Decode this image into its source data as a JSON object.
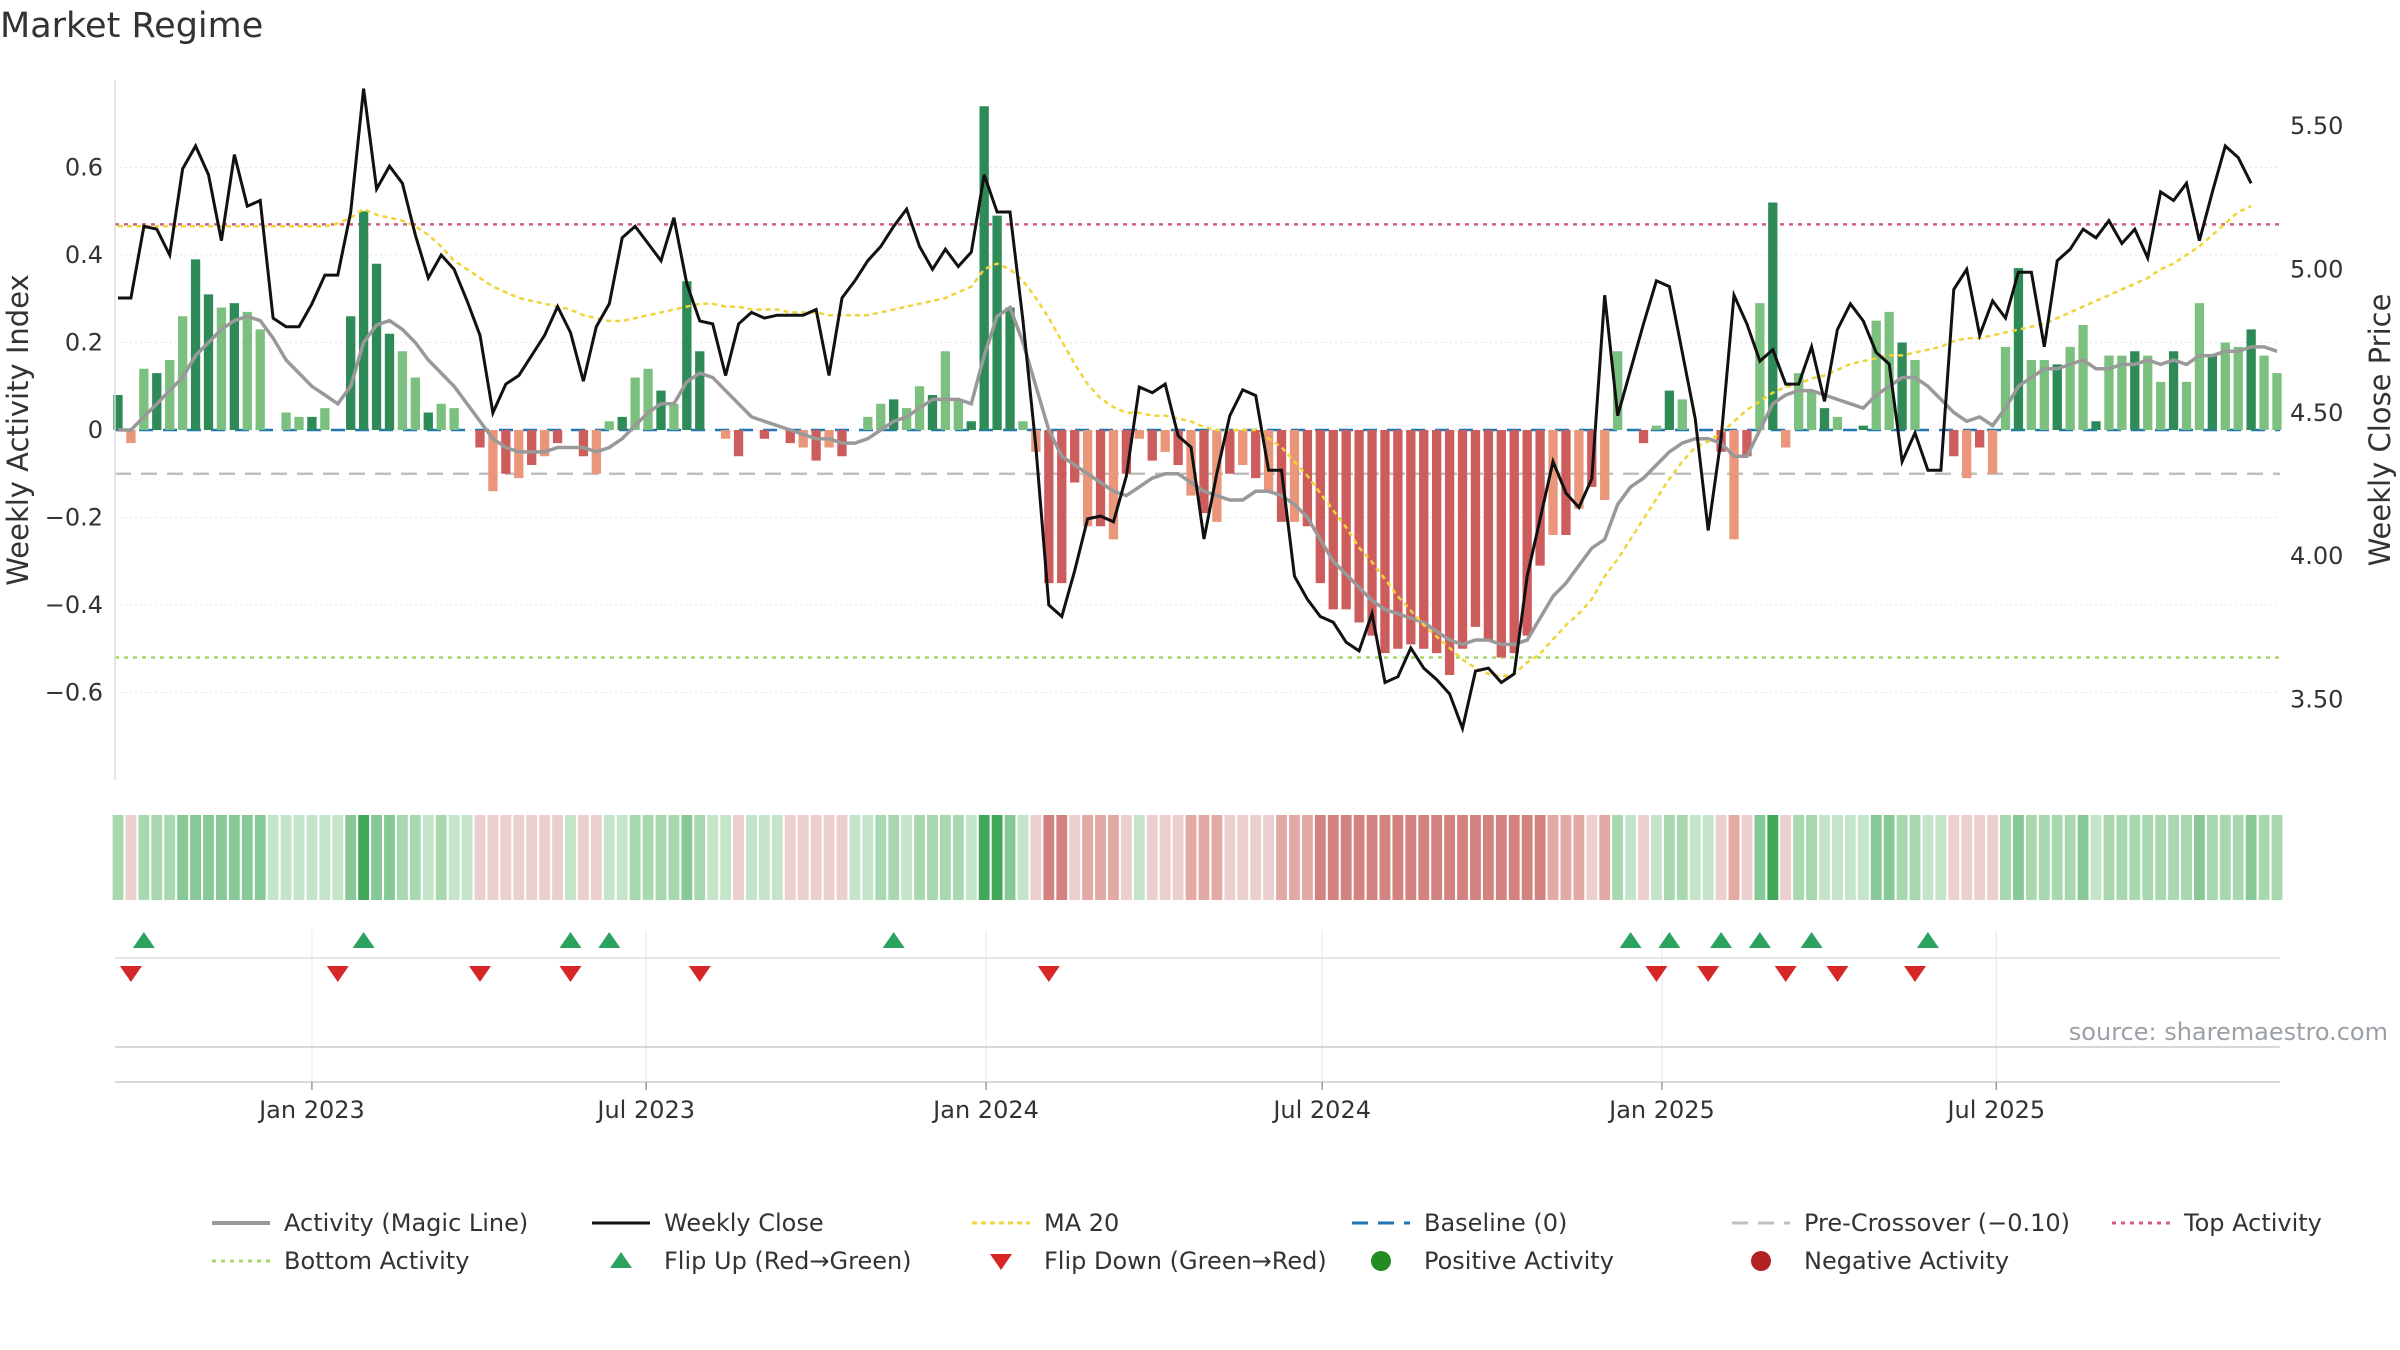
{
  "title": "Market Regime",
  "source_text": "source: sharemaestro.com",
  "colors": {
    "pos_strong": "#2e8b57",
    "pos_light": "#7cc07f",
    "neg_strong": "#cd5c5c",
    "neg_light": "#e9967a",
    "magic_line": "#999999",
    "close_line": "#111111",
    "ma20": "#f0d43a",
    "baseline": "#1f77b4",
    "precross": "#c0c0c0",
    "top": "#d45b83",
    "bottom": "#a8d86a",
    "flip_up": "#2ca25f",
    "flip_down": "#d62728",
    "pos_dot": "#228b22",
    "neg_dot": "#b22222"
  },
  "chart_data": {
    "type": "bar",
    "title": "Market Regime",
    "ylabel": "Weekly Activity Index",
    "y2label": "Weekly Close Price",
    "ylim": [
      -0.8,
      0.8
    ],
    "y2lim": [
      3.22,
      5.66
    ],
    "yticks": [
      0.6,
      0.4,
      0.2,
      0,
      -0.2,
      -0.4,
      -0.6
    ],
    "ytick_labels": [
      "0.6",
      "0.4",
      "0.2",
      "0",
      "−0.2",
      "−0.4",
      "−0.6"
    ],
    "y2ticks": [
      5.5,
      5.0,
      4.5,
      4.0,
      3.5
    ],
    "y2tick_labels": [
      "5.50",
      "5.00",
      "4.50",
      "4.00",
      "3.50"
    ],
    "start": "2022-09-18",
    "xticks": [
      {
        "date": "2023-01-01",
        "label": "Jan 2023"
      },
      {
        "date": "2023-07-01",
        "label": "Jul 2023"
      },
      {
        "date": "2024-01-01",
        "label": "Jan 2024"
      },
      {
        "date": "2024-07-01",
        "label": "Jul 2024"
      },
      {
        "date": "2025-01-01",
        "label": "Jan 2025"
      },
      {
        "date": "2025-07-01",
        "label": "Jul 2025"
      }
    ],
    "reference_lines": {
      "baseline": 0,
      "pre_crossover": -0.1,
      "top_activity": 0.47,
      "bottom_activity": -0.52
    },
    "activity": [
      0.08,
      -0.03,
      0.14,
      0.13,
      0.16,
      0.26,
      0.39,
      0.31,
      0.28,
      0.29,
      0.27,
      0.23,
      0.0,
      0.04,
      0.03,
      0.03,
      0.05,
      0.0,
      0.26,
      0.5,
      0.38,
      0.22,
      0.18,
      0.12,
      0.04,
      0.06,
      0.05,
      0.0,
      -0.04,
      -0.14,
      -0.1,
      -0.11,
      -0.08,
      -0.06,
      -0.03,
      0.0,
      -0.06,
      -0.1,
      0.02,
      0.03,
      0.12,
      0.14,
      0.09,
      0.06,
      0.34,
      0.18,
      0.0,
      -0.02,
      -0.06,
      0.0,
      -0.02,
      0.0,
      -0.03,
      -0.04,
      -0.07,
      -0.04,
      -0.06,
      0.0,
      0.03,
      0.06,
      0.07,
      0.05,
      0.1,
      0.08,
      0.18,
      0.07,
      0.02,
      0.74,
      0.49,
      0.28,
      0.02,
      -0.05,
      -0.35,
      -0.35,
      -0.12,
      -0.22,
      -0.22,
      -0.25,
      -0.1,
      -0.02,
      -0.07,
      -0.05,
      -0.08,
      -0.15,
      -0.19,
      -0.21,
      -0.1,
      -0.08,
      -0.11,
      -0.14,
      -0.21,
      -0.21,
      -0.22,
      -0.35,
      -0.41,
      -0.41,
      -0.44,
      -0.47,
      -0.51,
      -0.5,
      -0.49,
      -0.5,
      -0.51,
      -0.56,
      -0.5,
      -0.45,
      -0.48,
      -0.52,
      -0.51,
      -0.47,
      -0.31,
      -0.24,
      -0.24,
      -0.18,
      -0.13,
      -0.16,
      0.18,
      0.0,
      -0.03,
      0.01,
      0.09,
      0.07,
      0.0,
      0.0,
      -0.05,
      -0.25,
      -0.06,
      0.29,
      0.52,
      -0.04,
      0.13,
      0.09,
      0.05,
      0.03,
      0.0,
      0.01,
      0.25,
      0.27,
      0.2,
      0.16,
      0.0,
      0.0,
      -0.06,
      -0.11,
      -0.04,
      -0.1,
      0.19,
      0.37,
      0.16,
      0.16,
      0.15,
      0.19,
      0.24,
      0.02,
      0.17,
      0.17,
      0.18,
      0.17,
      0.11,
      0.18,
      0.11,
      0.29,
      0.17,
      0.2,
      0.19,
      0.23,
      0.17,
      0.13
    ],
    "magic_line": [
      0.0,
      0.0,
      0.03,
      0.06,
      0.09,
      0.12,
      0.17,
      0.2,
      0.23,
      0.25,
      0.26,
      0.25,
      0.21,
      0.16,
      0.13,
      0.1,
      0.08,
      0.06,
      0.1,
      0.2,
      0.24,
      0.25,
      0.23,
      0.2,
      0.16,
      0.13,
      0.1,
      0.06,
      0.02,
      -0.02,
      -0.04,
      -0.05,
      -0.05,
      -0.05,
      -0.04,
      -0.04,
      -0.04,
      -0.05,
      -0.04,
      -0.02,
      0.01,
      0.04,
      0.06,
      0.06,
      0.11,
      0.13,
      0.12,
      0.09,
      0.06,
      0.03,
      0.02,
      0.01,
      0.0,
      -0.01,
      -0.02,
      -0.02,
      -0.03,
      -0.03,
      -0.02,
      0.0,
      0.02,
      0.03,
      0.05,
      0.07,
      0.07,
      0.07,
      0.06,
      0.17,
      0.26,
      0.28,
      0.2,
      0.1,
      0.0,
      -0.06,
      -0.08,
      -0.1,
      -0.12,
      -0.14,
      -0.15,
      -0.13,
      -0.11,
      -0.1,
      -0.1,
      -0.12,
      -0.14,
      -0.15,
      -0.16,
      -0.16,
      -0.14,
      -0.14,
      -0.15,
      -0.17,
      -0.2,
      -0.25,
      -0.3,
      -0.33,
      -0.36,
      -0.39,
      -0.41,
      -0.42,
      -0.43,
      -0.44,
      -0.46,
      -0.48,
      -0.49,
      -0.48,
      -0.48,
      -0.49,
      -0.49,
      -0.48,
      -0.43,
      -0.38,
      -0.35,
      -0.31,
      -0.27,
      -0.25,
      -0.17,
      -0.13,
      -0.11,
      -0.08,
      -0.05,
      -0.03,
      -0.02,
      -0.02,
      -0.03,
      -0.06,
      -0.06,
      0.0,
      0.06,
      0.08,
      0.09,
      0.09,
      0.08,
      0.07,
      0.06,
      0.05,
      0.08,
      0.1,
      0.12,
      0.12,
      0.1,
      0.07,
      0.04,
      0.02,
      0.03,
      0.01,
      0.05,
      0.1,
      0.12,
      0.14,
      0.14,
      0.15,
      0.16,
      0.14,
      0.14,
      0.15,
      0.15,
      0.16,
      0.15,
      0.16,
      0.15,
      0.17,
      0.17,
      0.18,
      0.18,
      0.19,
      0.19,
      0.18
    ],
    "weekly_close": [
      4.9,
      4.9,
      5.15,
      5.14,
      5.05,
      5.35,
      5.43,
      5.33,
      5.1,
      5.4,
      5.22,
      5.24,
      4.83,
      4.8,
      4.8,
      4.88,
      4.98,
      4.98,
      5.2,
      5.63,
      5.28,
      5.36,
      5.3,
      5.12,
      4.97,
      5.05,
      5.0,
      4.89,
      4.77,
      4.5,
      4.6,
      4.63,
      4.7,
      4.77,
      4.87,
      4.78,
      4.61,
      4.8,
      4.88,
      5.11,
      5.15,
      5.09,
      5.03,
      5.18,
      4.95,
      4.82,
      4.81,
      4.63,
      4.81,
      4.85,
      4.83,
      4.84,
      4.84,
      4.84,
      4.86,
      4.63,
      4.9,
      4.96,
      5.03,
      5.08,
      5.15,
      5.21,
      5.08,
      5.0,
      5.07,
      5.01,
      5.06,
      5.33,
      5.2,
      5.2,
      4.82,
      4.38,
      3.83,
      3.79,
      3.95,
      4.13,
      4.14,
      4.12,
      4.28,
      4.59,
      4.57,
      4.6,
      4.42,
      4.38,
      4.06,
      4.29,
      4.49,
      4.58,
      4.56,
      4.3,
      4.3,
      3.93,
      3.85,
      3.79,
      3.77,
      3.7,
      3.67,
      3.8,
      3.56,
      3.58,
      3.68,
      3.61,
      3.57,
      3.52,
      3.4,
      3.6,
      3.61,
      3.56,
      3.59,
      3.93,
      4.13,
      4.33,
      4.22,
      4.17,
      4.27,
      4.91,
      4.49,
      4.65,
      4.81,
      4.96,
      4.94,
      4.71,
      4.48,
      4.09,
      4.41,
      4.91,
      4.81,
      4.68,
      4.72,
      4.6,
      4.6,
      4.73,
      4.54,
      4.79,
      4.88,
      4.82,
      4.71,
      4.67,
      4.33,
      4.43,
      4.3,
      4.3,
      4.93,
      5.0,
      4.77,
      4.89,
      4.83,
      4.99,
      4.99,
      4.73,
      5.03,
      5.07,
      5.14,
      5.11,
      5.17,
      5.09,
      5.14,
      5.04,
      5.27,
      5.24,
      5.3,
      5.1,
      5.27,
      5.43,
      5.39,
      5.3
    ],
    "ma20": [
      5.15,
      5.15,
      5.15,
      5.15,
      5.15,
      5.15,
      5.15,
      5.15,
      5.15,
      5.15,
      5.15,
      5.15,
      5.15,
      5.15,
      5.15,
      5.15,
      5.15,
      5.16,
      5.18,
      5.21,
      5.19,
      5.18,
      5.17,
      5.15,
      5.12,
      5.08,
      5.03,
      5.0,
      4.97,
      4.94,
      4.92,
      4.9,
      4.89,
      4.88,
      4.87,
      4.86,
      4.84,
      4.83,
      4.82,
      4.82,
      4.83,
      4.84,
      4.85,
      4.86,
      4.87,
      4.88,
      4.88,
      4.87,
      4.87,
      4.86,
      4.86,
      4.86,
      4.85,
      4.85,
      4.85,
      4.84,
      4.84,
      4.84,
      4.84,
      4.85,
      4.86,
      4.87,
      4.88,
      4.89,
      4.9,
      4.92,
      4.94,
      5.0,
      5.02,
      5.0,
      4.96,
      4.9,
      4.83,
      4.75,
      4.67,
      4.6,
      4.55,
      4.52,
      4.5,
      4.5,
      4.49,
      4.49,
      4.48,
      4.47,
      4.45,
      4.44,
      4.44,
      4.44,
      4.44,
      4.41,
      4.38,
      4.33,
      4.28,
      4.22,
      4.16,
      4.1,
      4.03,
      3.98,
      3.92,
      3.86,
      3.81,
      3.76,
      3.72,
      3.68,
      3.64,
      3.61,
      3.59,
      3.58,
      3.59,
      3.63,
      3.66,
      3.71,
      3.76,
      3.8,
      3.85,
      3.93,
      3.99,
      4.06,
      4.13,
      4.2,
      4.27,
      4.33,
      4.38,
      4.4,
      4.43,
      4.47,
      4.51,
      4.54,
      4.57,
      4.59,
      4.6,
      4.62,
      4.63,
      4.65,
      4.67,
      4.68,
      4.69,
      4.7,
      4.7,
      4.71,
      4.72,
      4.73,
      4.75,
      4.76,
      4.76,
      4.77,
      4.78,
      4.79,
      4.8,
      4.81,
      4.83,
      4.85,
      4.87,
      4.89,
      4.91,
      4.93,
      4.95,
      4.97,
      5.0,
      5.02,
      5.05,
      5.08,
      5.12,
      5.16,
      5.2,
      5.22
    ],
    "flip_up_weeks": [
      2,
      19,
      35,
      38,
      60,
      117,
      120,
      124,
      127,
      131,
      140
    ],
    "flip_down_weeks": [
      1,
      17,
      28,
      35,
      45,
      72,
      119,
      123,
      129,
      133,
      139
    ]
  },
  "xtick_labels": [
    "Jan 2023",
    "Jul 2023",
    "Jan 2024",
    "Jul 2024",
    "Jan 2025",
    "Jul 2025"
  ],
  "legend": [
    {
      "key": "magic",
      "label": "Activity (Magic Line)"
    },
    {
      "key": "close",
      "label": "Weekly Close"
    },
    {
      "key": "ma20",
      "label": "MA 20"
    },
    {
      "key": "baseline",
      "label": "Baseline (0)"
    },
    {
      "key": "precross",
      "label": "Pre-Crossover (−0.10)"
    },
    {
      "key": "top",
      "label": "Top Activity"
    },
    {
      "key": "bottom",
      "label": "Bottom Activity"
    },
    {
      "key": "flipup",
      "label": "Flip Up (Red→Green)"
    },
    {
      "key": "flipdown",
      "label": "Flip Down (Green→Red)"
    },
    {
      "key": "posdot",
      "label": "Positive Activity"
    },
    {
      "key": "negdot",
      "label": "Negative Activity"
    }
  ]
}
